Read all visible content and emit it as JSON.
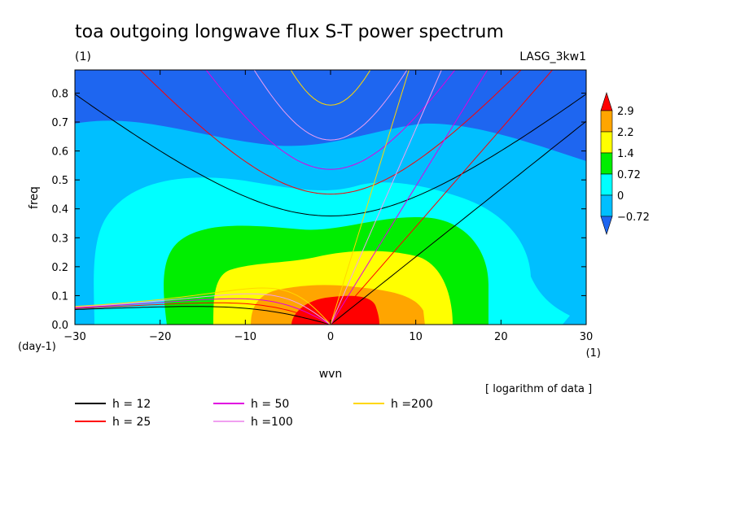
{
  "chart_data": {
    "type": "heatmap",
    "title": "toa outgoing longwave flux S-T power spectrum",
    "subtitle_left": "(1)",
    "subtitle_right": "LASG_3kw1",
    "xlabel": "wvn",
    "ylabel": "freq",
    "x_unit_label": "(1)",
    "y_unit_label": "(day-1)",
    "xlim": [
      -30,
      30
    ],
    "ylim": [
      0,
      0.88
    ],
    "x_ticks": [
      -30,
      -20,
      -10,
      0,
      10,
      20,
      30
    ],
    "x_tick_labels": [
      "-30",
      "-20",
      "-10",
      "0",
      "10",
      "20",
      "30"
    ],
    "y_ticks": [
      0,
      0.1,
      0.2,
      0.3,
      0.4,
      0.5,
      0.6,
      0.7,
      0.8
    ],
    "y_tick_labels": [
      "0.0",
      "0.1",
      "0.2",
      "0.3",
      "0.4",
      "0.5",
      "0.6",
      "0.7",
      "0.8"
    ],
    "note": "[ logarithm of data ]",
    "colorbar": {
      "levels": [
        "-0.72",
        "0",
        "0.72",
        "1.4",
        "2.2",
        "2.9"
      ],
      "colors": [
        "#1e66f0",
        "#00bfff",
        "#00ffff",
        "#00ee00",
        "#ffff00",
        "#ffa500",
        "#ff0000"
      ]
    },
    "filled_levels": [
      {
        "name": "below -0.72",
        "color": "#1e66f0"
      },
      {
        "name": "-0.72 to 0",
        "color": "#00bfff"
      },
      {
        "name": "0 to 0.72",
        "color": "#00ffff"
      },
      {
        "name": "0.72 to 1.4",
        "color": "#00ee00"
      },
      {
        "name": "1.4 to 2.2",
        "color": "#ffff00"
      },
      {
        "name": "2.2 to 2.9",
        "color": "#ffa500"
      },
      {
        "name": "above 2.9",
        "color": "#ff0000"
      }
    ],
    "dispersion_curves": [
      {
        "label": "h = 12",
        "h": 12,
        "color": "#000000"
      },
      {
        "label": "h = 25",
        "h": 25,
        "color": "#ff0000"
      },
      {
        "label": "h = 50",
        "h": 50,
        "color": "#e000e0"
      },
      {
        "label": "h =100",
        "h": 100,
        "color": "#f0a0f0"
      },
      {
        "label": "h =200",
        "h": 200,
        "color": "#ffd700"
      }
    ]
  }
}
